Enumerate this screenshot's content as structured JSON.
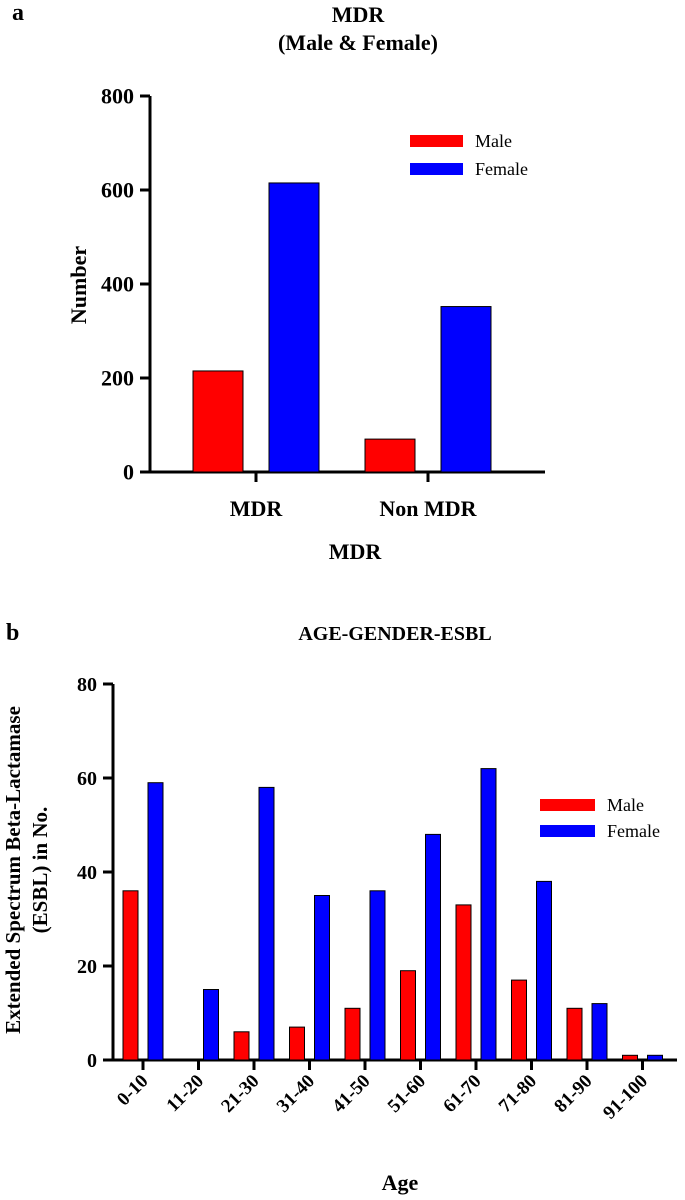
{
  "chart_data": [
    {
      "type": "bar",
      "panel_label": "a",
      "title": "MDR",
      "subtitle": "(Male & Female)",
      "xlabel": "MDR",
      "ylabel": "Number",
      "categories": [
        "MDR",
        "Non MDR"
      ],
      "series": [
        {
          "name": "Male",
          "color": "#ff0000",
          "values": [
            215,
            70
          ]
        },
        {
          "name": "Female",
          "color": "#0000ff",
          "values": [
            615,
            352
          ]
        }
      ],
      "ylim": [
        0,
        800
      ],
      "yticks": [
        "0",
        "200",
        "400",
        "600",
        "800"
      ],
      "legend": "top-right"
    },
    {
      "type": "bar",
      "panel_label": "b",
      "title": "AGE-GENDER-ESBL",
      "xlabel": "Age",
      "ylabel_line1": "Extended Spectrum Beta-Lactamase",
      "ylabel_line2": "(ESBL) in No.",
      "categories": [
        "0-10",
        "11-20",
        "21-30",
        "31-40",
        "41-50",
        "51-60",
        "61-70",
        "71-80",
        "81-90",
        "91-100"
      ],
      "series": [
        {
          "name": "Male",
          "color": "#ff0000",
          "values": [
            36,
            0,
            6,
            7,
            11,
            19,
            33,
            17,
            11,
            1
          ]
        },
        {
          "name": "Female",
          "color": "#0000ff",
          "values": [
            59,
            15,
            58,
            35,
            36,
            48,
            62,
            38,
            12,
            1
          ]
        }
      ],
      "ylim": [
        0,
        80
      ],
      "yticks": [
        "0",
        "20",
        "40",
        "60",
        "80"
      ],
      "legend": "right"
    }
  ]
}
